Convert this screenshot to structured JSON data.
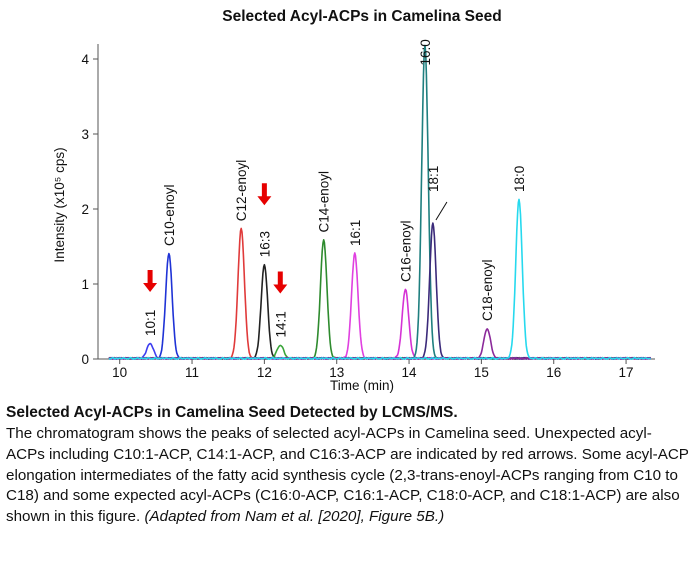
{
  "chart_data": {
    "type": "line",
    "title": "Selected Acyl-ACPs in Camelina Seed",
    "xlabel": "Time (min)",
    "ylabel": "Intensity (x10⁵ cps)",
    "xlim": [
      9.7,
      17.4
    ],
    "ylim": [
      0,
      4.2
    ],
    "xticks": [
      10,
      11,
      12,
      13,
      14,
      15,
      16,
      17
    ],
    "yticks": [
      0,
      1,
      2,
      3,
      4
    ],
    "grid": false,
    "legend": "none",
    "series": [
      {
        "name": "10:1",
        "color": "#3d3df0",
        "peak_x": 10.42,
        "peak_y": 0.2
      },
      {
        "name": "C10-enoyl",
        "color": "#1f33d6",
        "peak_x": 10.68,
        "peak_y": 1.4
      },
      {
        "name": "C12-enoyl",
        "color": "#e03a3a",
        "peak_x": 11.68,
        "peak_y": 1.73
      },
      {
        "name": "16:3",
        "color": "#222222",
        "peak_x": 12.0,
        "peak_y": 1.25
      },
      {
        "name": "14:1",
        "color": "#3aa53a",
        "peak_x": 12.22,
        "peak_y": 0.18
      },
      {
        "name": "C14-enoyl",
        "color": "#2e8b2e",
        "peak_x": 12.82,
        "peak_y": 1.58
      },
      {
        "name": "16:1",
        "color": "#e040e0",
        "peak_x": 13.25,
        "peak_y": 1.4
      },
      {
        "name": "C16-enoyl",
        "color": "#d533d5",
        "peak_x": 13.95,
        "peak_y": 0.92
      },
      {
        "name": "16:0",
        "color": "#1f7f7f",
        "peak_x": 14.22,
        "peak_y": 4.18
      },
      {
        "name": "18:1",
        "color": "#3b2a7a",
        "peak_x": 14.33,
        "peak_y": 1.8
      },
      {
        "name": "C18-enoyl",
        "color": "#8b2a9a",
        "peak_x": 15.08,
        "peak_y": 0.4
      },
      {
        "name": "18:0",
        "color": "#26d9ee",
        "peak_x": 15.52,
        "peak_y": 2.12
      }
    ],
    "arrow_color": "#e60000",
    "red_arrow_targets": [
      "10:1",
      "16:3",
      "14:1"
    ]
  },
  "caption": {
    "title": "Selected Acyl-ACPs in Camelina Seed Detected by LCMS/MS.",
    "body": "The chromatogram shows the peaks of selected acyl-ACPs in Camelina seed. Unexpected acyl-ACPs including C10:1-ACP, C14:1-ACP, and C16:3-ACP are indicated by red arrows. Some acyl-ACP elongation intermediates of the fatty acid synthesis cycle (2,3-trans-enoyl-ACPs ranging from C10 to C18) and some expected acyl-ACPs (C16:0-ACP, C16:1-ACP, C18:0-ACP, and C18:1-ACP) are also shown in this figure.",
    "reference": "(Adapted from Nam et al. [2020], Figure 5B.)"
  }
}
